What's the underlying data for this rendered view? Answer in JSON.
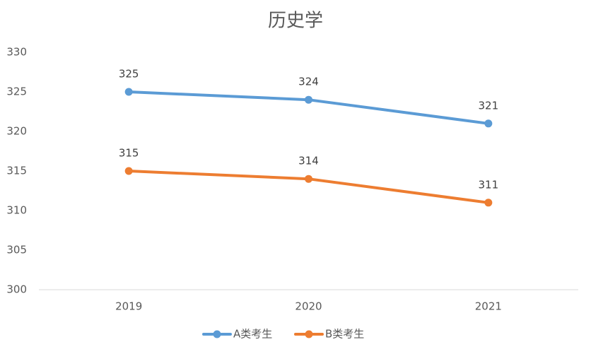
{
  "chart_data": {
    "type": "line",
    "title": "历史学",
    "categories": [
      "2019",
      "2020",
      "2021"
    ],
    "series": [
      {
        "name": "A类考生",
        "color": "#5b9bd5",
        "values": [
          325,
          324,
          321
        ]
      },
      {
        "name": "B类考生",
        "color": "#ed7d31",
        "values": [
          315,
          314,
          311
        ]
      }
    ],
    "ylim": [
      300,
      330
    ],
    "yticks": [
      300,
      305,
      310,
      315,
      320,
      325,
      330
    ],
    "grid": false,
    "legend": "bottom"
  }
}
